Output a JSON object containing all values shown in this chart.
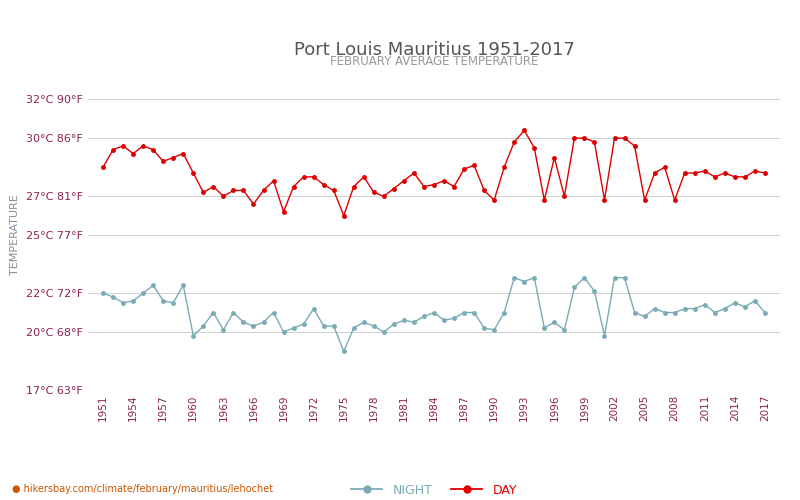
{
  "title": "Port Louis Mauritius 1951-2017",
  "subtitle": "FEBRUARY AVERAGE TEMPERATURE",
  "ylabel": "TEMPERATURE",
  "xlabel_url": "hikersbay.com/climate/february/mauritius/lehochet",
  "legend_night": "NIGHT",
  "legend_day": "DAY",
  "years": [
    1951,
    1952,
    1953,
    1954,
    1955,
    1956,
    1957,
    1958,
    1959,
    1960,
    1961,
    1962,
    1963,
    1964,
    1965,
    1966,
    1967,
    1968,
    1969,
    1970,
    1971,
    1972,
    1973,
    1974,
    1975,
    1976,
    1977,
    1978,
    1979,
    1980,
    1981,
    1982,
    1983,
    1984,
    1985,
    1986,
    1987,
    1988,
    1989,
    1990,
    1991,
    1992,
    1993,
    1994,
    1995,
    1996,
    1997,
    1998,
    1999,
    2000,
    2001,
    2002,
    2003,
    2004,
    2005,
    2006,
    2007,
    2008,
    2009,
    2010,
    2011,
    2012,
    2013,
    2014,
    2015,
    2016,
    2017
  ],
  "day_temps": [
    28.5,
    29.4,
    29.6,
    29.2,
    29.6,
    29.4,
    28.8,
    29.0,
    29.2,
    28.2,
    27.2,
    27.5,
    27.0,
    27.3,
    27.3,
    26.6,
    27.3,
    27.8,
    26.2,
    27.5,
    28.0,
    28.0,
    27.6,
    27.3,
    26.0,
    27.5,
    28.0,
    27.2,
    27.0,
    27.4,
    27.8,
    28.2,
    27.5,
    27.6,
    27.8,
    27.5,
    28.4,
    28.6,
    27.3,
    26.8,
    28.5,
    29.8,
    30.4,
    29.5,
    26.8,
    29.0,
    27.0,
    30.0,
    30.0,
    29.8,
    26.8,
    30.0,
    30.0,
    29.6,
    26.8,
    28.2,
    28.5,
    26.8,
    28.2,
    28.2,
    28.3,
    28.0,
    28.2,
    28.0,
    28.0,
    28.3,
    28.2
  ],
  "night_temps": [
    22.0,
    21.8,
    21.5,
    21.6,
    22.0,
    22.4,
    21.6,
    21.5,
    22.4,
    19.8,
    20.3,
    21.0,
    20.1,
    21.0,
    20.5,
    20.3,
    20.5,
    21.0,
    20.0,
    20.2,
    20.4,
    21.2,
    20.3,
    20.3,
    19.0,
    20.2,
    20.5,
    20.3,
    20.0,
    20.4,
    20.6,
    20.5,
    20.8,
    21.0,
    20.6,
    20.7,
    21.0,
    21.0,
    20.2,
    20.1,
    21.0,
    22.8,
    22.6,
    22.8,
    20.2,
    20.5,
    20.1,
    22.3,
    22.8,
    22.1,
    19.8,
    22.8,
    22.8,
    21.0,
    20.8,
    21.2,
    21.0,
    21.0,
    21.2,
    21.2,
    21.4,
    21.0,
    21.2,
    21.5,
    21.3,
    21.6,
    21.0
  ],
  "ylim_min": 17,
  "ylim_max": 33,
  "yticks_c": [
    17,
    20,
    22,
    25,
    27,
    30,
    32
  ],
  "yticks_f": [
    63,
    68,
    72,
    77,
    81,
    86,
    90
  ],
  "day_color": "#dd0000",
  "night_color": "#7aacb5",
  "grid_color": "#d0d0d0",
  "title_color": "#555555",
  "subtitle_color": "#999999",
  "tick_color": "#8b2252",
  "ylabel_color": "#8a8a9a",
  "background_color": "#ffffff",
  "url_color": "#cc5500",
  "url_dot_color": "#f5a623",
  "figsize": [
    8.0,
    5.0
  ],
  "dpi": 100
}
